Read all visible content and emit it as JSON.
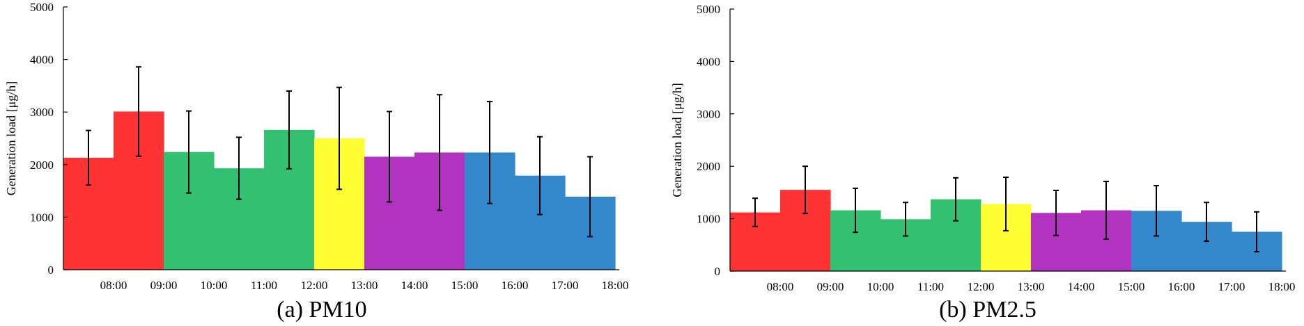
{
  "chart_data": [
    {
      "type": "bar",
      "caption": "(a) PM10",
      "ylabel": "Generation load [μg/h]",
      "xlabel": "",
      "ylim": [
        0,
        5000
      ],
      "yticks": [
        0,
        1000,
        2000,
        3000,
        4000,
        5000
      ],
      "xtick_labels": [
        "08:00",
        "09:00",
        "10:00",
        "11:00",
        "12:00",
        "13:00",
        "14:00",
        "15:00",
        "16:00",
        "17:00",
        "18:00"
      ],
      "legend": "none",
      "grid": false,
      "bars": [
        {
          "value": 2130,
          "error": 520,
          "color": "#ff3333"
        },
        {
          "value": 3010,
          "error": 850,
          "color": "#ff3333"
        },
        {
          "value": 2240,
          "error": 780,
          "color": "#33c070"
        },
        {
          "value": 1930,
          "error": 590,
          "color": "#33c070"
        },
        {
          "value": 2660,
          "error": 740,
          "color": "#33c070"
        },
        {
          "value": 2500,
          "error": 970,
          "color": "#ffff33"
        },
        {
          "value": 2150,
          "error": 860,
          "color": "#b233c0"
        },
        {
          "value": 2230,
          "error": 1100,
          "color": "#b233c0"
        },
        {
          "value": 2230,
          "error": 970,
          "color": "#3388cc"
        },
        {
          "value": 1790,
          "error": 740,
          "color": "#3388cc"
        },
        {
          "value": 1390,
          "error": 760,
          "color": "#3388cc"
        }
      ]
    },
    {
      "type": "bar",
      "caption": "(b) PM2.5",
      "ylabel": "Generation load [μg/h]",
      "xlabel": "",
      "ylim": [
        0,
        5000
      ],
      "yticks": [
        0,
        1000,
        2000,
        3000,
        4000,
        5000
      ],
      "xtick_labels": [
        "08:00",
        "09:00",
        "10:00",
        "11:00",
        "12:00",
        "13:00",
        "14:00",
        "15:00",
        "16:00",
        "17:00",
        "18:00"
      ],
      "legend": "none",
      "grid": false,
      "bars": [
        {
          "value": 1120,
          "error": 270,
          "color": "#ff3333"
        },
        {
          "value": 1550,
          "error": 450,
          "color": "#ff3333"
        },
        {
          "value": 1160,
          "error": 420,
          "color": "#33c070"
        },
        {
          "value": 990,
          "error": 320,
          "color": "#33c070"
        },
        {
          "value": 1370,
          "error": 410,
          "color": "#33c070"
        },
        {
          "value": 1280,
          "error": 510,
          "color": "#ffff33"
        },
        {
          "value": 1110,
          "error": 430,
          "color": "#b233c0"
        },
        {
          "value": 1160,
          "error": 550,
          "color": "#b233c0"
        },
        {
          "value": 1150,
          "error": 480,
          "color": "#3388cc"
        },
        {
          "value": 940,
          "error": 370,
          "color": "#3388cc"
        },
        {
          "value": 750,
          "error": 380,
          "color": "#3388cc"
        }
      ]
    }
  ]
}
